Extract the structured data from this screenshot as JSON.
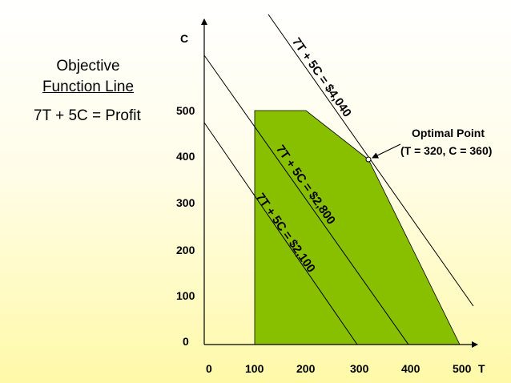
{
  "objective": {
    "line1": "Objective",
    "line2": "Function Line",
    "equation": "7T + 5C = Profit"
  },
  "axes": {
    "x_label": "T",
    "y_label": "C",
    "x_ticks": [
      "0",
      "100",
      "200",
      "300",
      "400",
      "500"
    ],
    "y_ticks": [
      "0",
      "100",
      "200",
      "300",
      "400",
      "500"
    ]
  },
  "lines": [
    {
      "label": "7T + 5C = $2,100",
      "profit": 2100
    },
    {
      "label": "7T + 5C = $2,800",
      "profit": 2800
    },
    {
      "label": "7T + 5C = $4,040",
      "profit": 4040
    }
  ],
  "feasible_region": {
    "color": "#88c000",
    "vertices": [
      [
        100,
        0
      ],
      [
        100,
        500
      ],
      [
        200,
        500
      ],
      [
        320,
        360
      ],
      [
        500,
        0
      ]
    ]
  },
  "optimal": {
    "title": "Optimal Point",
    "coords": "(T = 320, C = 360)",
    "T": 320,
    "C": 360
  }
}
